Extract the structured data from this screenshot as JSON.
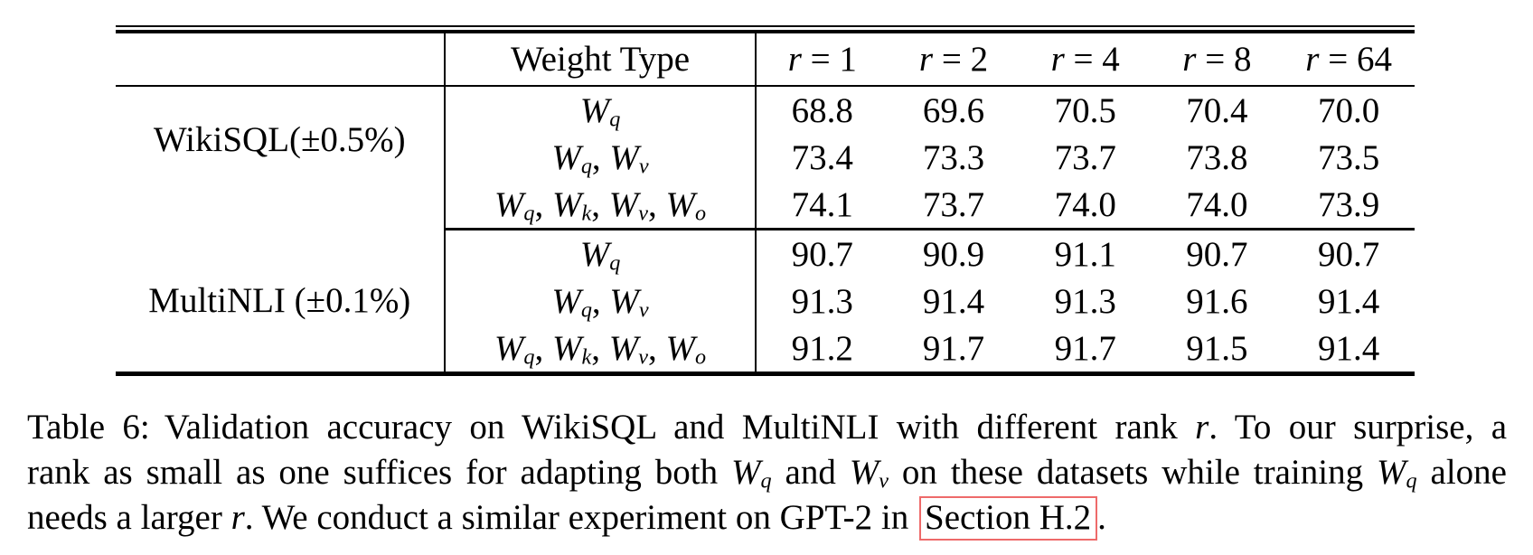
{
  "table": {
    "term_separator": ", ",
    "header": {
      "weight_type": "Weight Type",
      "rank_var": "r",
      "eq": " = ",
      "ranks": [
        "1",
        "2",
        "4",
        "8",
        "64"
      ]
    },
    "groups": [
      {
        "label": "WikiSQL(±0.5%)",
        "rows": [
          {
            "terms": [
              {
                "base": "W",
                "sub": "q"
              }
            ],
            "values": [
              "68.8",
              "69.6",
              "70.5",
              "70.4",
              "70.0"
            ]
          },
          {
            "terms": [
              {
                "base": "W",
                "sub": "q"
              },
              {
                "base": "W",
                "sub": "v"
              }
            ],
            "values": [
              "73.4",
              "73.3",
              "73.7",
              "73.8",
              "73.5"
            ]
          },
          {
            "terms": [
              {
                "base": "W",
                "sub": "q"
              },
              {
                "base": "W",
                "sub": "k"
              },
              {
                "base": "W",
                "sub": "v"
              },
              {
                "base": "W",
                "sub": "o"
              }
            ],
            "values": [
              "74.1",
              "73.7",
              "74.0",
              "74.0",
              "73.9"
            ]
          }
        ]
      },
      {
        "label": "MultiNLI (±0.1%)",
        "rows": [
          {
            "terms": [
              {
                "base": "W",
                "sub": "q"
              }
            ],
            "values": [
              "90.7",
              "90.9",
              "91.1",
              "90.7",
              "90.7"
            ]
          },
          {
            "terms": [
              {
                "base": "W",
                "sub": "q"
              },
              {
                "base": "W",
                "sub": "v"
              }
            ],
            "values": [
              "91.3",
              "91.4",
              "91.3",
              "91.6",
              "91.4"
            ]
          },
          {
            "terms": [
              {
                "base": "W",
                "sub": "q"
              },
              {
                "base": "W",
                "sub": "k"
              },
              {
                "base": "W",
                "sub": "v"
              },
              {
                "base": "W",
                "sub": "o"
              }
            ],
            "values": [
              "91.2",
              "91.7",
              "91.7",
              "91.5",
              "91.4"
            ]
          }
        ]
      }
    ]
  },
  "caption": {
    "label": "Table 6:",
    "l1a": "Validation accuracy on WikiSQL and MultiNLI with different rank ",
    "math_r": "r",
    "l1b": ". To our surprise, a",
    "l2a": "rank as small as one suffices for adapting both ",
    "wq": {
      "base": "W",
      "sub": "q"
    },
    "wv": {
      "base": "W",
      "sub": "v"
    },
    "l2b": " and ",
    "l2c": " on these datasets while training ",
    "l2d": " alone",
    "l3a": "needs a larger ",
    "l3b": ". We conduct a similar experiment on GPT-2 in ",
    "link": "Section H.2",
    "l3c": "."
  },
  "colors": {
    "text": "#000000",
    "background": "#ffffff",
    "link_box": "#ee6a6a"
  }
}
